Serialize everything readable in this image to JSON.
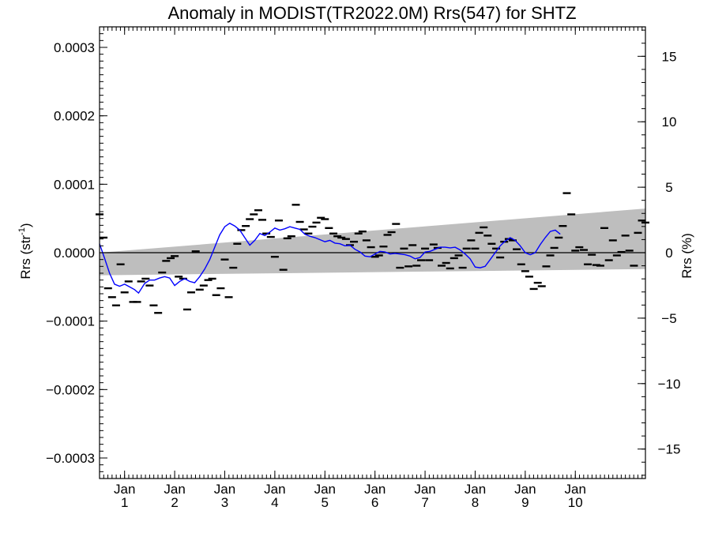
{
  "chart_data": {
    "type": "scatter",
    "title": "Anomaly in MODIST(TR2022.0M) Rrs(547) for SHTZ",
    "ylabel_left": "Rrs (str",
    "ylabel_left_sup": "-1",
    "ylabel_left_close": ")",
    "ylabel_right": "Rrs (%)",
    "grid": false,
    "xlim": [
      0,
      10.9
    ],
    "ylim": [
      -0.00033,
      0.00033
    ],
    "ylim_right": [
      -17.25,
      17.25
    ],
    "x_ticks": [
      {
        "x": 0.5,
        "month": "Jan",
        "year": "1"
      },
      {
        "x": 1.5,
        "month": "Jan",
        "year": "2"
      },
      {
        "x": 2.5,
        "month": "Jan",
        "year": "3"
      },
      {
        "x": 3.5,
        "month": "Jan",
        "year": "4"
      },
      {
        "x": 4.5,
        "month": "Jan",
        "year": "5"
      },
      {
        "x": 5.5,
        "month": "Jan",
        "year": "6"
      },
      {
        "x": 6.5,
        "month": "Jan",
        "year": "7"
      },
      {
        "x": 7.5,
        "month": "Jan",
        "year": "8"
      },
      {
        "x": 8.5,
        "month": "Jan",
        "year": "9"
      },
      {
        "x": 9.5,
        "month": "Jan",
        "year": "10"
      }
    ],
    "y_ticks_left": [
      {
        "v": 0.0003,
        "label": "0.0003"
      },
      {
        "v": 0.0002,
        "label": "0.0002"
      },
      {
        "v": 0.0001,
        "label": "0.0001"
      },
      {
        "v": 0.0,
        "label": "0.0000"
      },
      {
        "v": -0.0001,
        "label": "−0.0001"
      },
      {
        "v": -0.0002,
        "label": "−0.0002"
      },
      {
        "v": -0.0003,
        "label": "−0.0003"
      }
    ],
    "y_ticks_right": [
      {
        "v": 15,
        "label": "15"
      },
      {
        "v": 10,
        "label": "10"
      },
      {
        "v": 5,
        "label": "5"
      },
      {
        "v": 0,
        "label": "0"
      },
      {
        "v": -5,
        "label": "−5"
      },
      {
        "v": -10,
        "label": "−10"
      },
      {
        "v": -15,
        "label": "−15"
      }
    ],
    "colors": {
      "band": "#bebebe",
      "smooth_line": "#0000ff",
      "points": "#000000",
      "zero_line": "#000000"
    },
    "uncertainty_band": {
      "x": [
        0,
        10.9
      ],
      "upper": [
        0.0,
        6.45e-05
      ],
      "lower": [
        -3.3e-05,
        -2.4e-05
      ]
    },
    "series": [
      {
        "type": "points",
        "points": [
          [
            0.0,
            5.6e-05
          ],
          [
            0.08,
            2.2e-05
          ],
          [
            0.17,
            -5.2e-05
          ],
          [
            0.25,
            -6.5e-05
          ],
          [
            0.33,
            -7.7e-05
          ],
          [
            0.42,
            -1.7e-05
          ],
          [
            0.5,
            -5.8e-05
          ],
          [
            0.58,
            -4.2e-05
          ],
          [
            0.67,
            -7.2e-05
          ],
          [
            0.75,
            -7.2e-05
          ],
          [
            0.83,
            -4.2e-05
          ],
          [
            0.92,
            -3.8e-05
          ],
          [
            1.0,
            -4.8e-05
          ],
          [
            1.08,
            -7.7e-05
          ],
          [
            1.17,
            -8.8e-05
          ],
          [
            1.25,
            -2.9e-05
          ],
          [
            1.33,
            -1.2e-05
          ],
          [
            1.42,
            -8e-06
          ],
          [
            1.5,
            -5e-06
          ],
          [
            1.58,
            -3.5e-05
          ],
          [
            1.67,
            -3.8e-05
          ],
          [
            1.75,
            -8.3e-05
          ],
          [
            1.83,
            -5.8e-05
          ],
          [
            1.92,
            2e-06
          ],
          [
            2.0,
            -5.4e-05
          ],
          [
            2.08,
            -4.8e-05
          ],
          [
            2.17,
            -4e-05
          ],
          [
            2.25,
            -3.8e-05
          ],
          [
            2.33,
            -6.2e-05
          ],
          [
            2.42,
            -5.2e-05
          ],
          [
            2.5,
            -1e-05
          ],
          [
            2.58,
            -6.5e-05
          ],
          [
            2.67,
            -2.2e-05
          ],
          [
            2.75,
            1.3e-05
          ],
          [
            2.83,
            3.3e-05
          ],
          [
            2.92,
            3.9e-05
          ],
          [
            3.0,
            4.9e-05
          ],
          [
            3.08,
            5.6e-05
          ],
          [
            3.17,
            6.2e-05
          ],
          [
            3.25,
            4.8e-05
          ],
          [
            3.33,
            2.8e-05
          ],
          [
            3.42,
            2.3e-05
          ],
          [
            3.5,
            -6e-06
          ],
          [
            3.58,
            4.7e-05
          ],
          [
            3.67,
            -2.5e-05
          ],
          [
            3.75,
            2.1e-05
          ],
          [
            3.83,
            2.4e-05
          ],
          [
            3.92,
            7e-05
          ],
          [
            4.0,
            4.5e-05
          ],
          [
            4.08,
            3.4e-05
          ],
          [
            4.17,
            2.8e-05
          ],
          [
            4.25,
            3.8e-05
          ],
          [
            4.33,
            4.4e-05
          ],
          [
            4.42,
            5.1e-05
          ],
          [
            4.5,
            4.9e-05
          ],
          [
            4.58,
            3.6e-05
          ],
          [
            4.67,
            2.8e-05
          ],
          [
            4.75,
            2.4e-05
          ],
          [
            4.83,
            2.2e-05
          ],
          [
            4.92,
            2e-05
          ],
          [
            5.0,
            1.1e-05
          ],
          [
            5.08,
            1.6e-05
          ],
          [
            5.17,
            2.8e-05
          ],
          [
            5.25,
            3.1e-05
          ],
          [
            5.33,
            1.8e-05
          ],
          [
            5.42,
            8e-06
          ],
          [
            5.5,
            -6e-06
          ],
          [
            5.58,
            -4e-06
          ],
          [
            5.67,
            9e-06
          ],
          [
            5.75,
            2.6e-05
          ],
          [
            5.83,
            3e-05
          ],
          [
            5.92,
            4.2e-05
          ],
          [
            6.0,
            -2.2e-05
          ],
          [
            6.08,
            6e-06
          ],
          [
            6.17,
            -2e-05
          ],
          [
            6.25,
            1.1e-05
          ],
          [
            6.33,
            -1.9e-05
          ],
          [
            6.42,
            -1.1e-05
          ],
          [
            6.5,
            6e-06
          ],
          [
            6.58,
            -1.1e-05
          ],
          [
            6.67,
            1.2e-05
          ],
          [
            6.75,
            7e-06
          ],
          [
            6.83,
            -1.9e-05
          ],
          [
            6.92,
            -1.5e-05
          ],
          [
            7.0,
            -2.3e-05
          ],
          [
            7.08,
            -8e-06
          ],
          [
            7.17,
            -4e-06
          ],
          [
            7.25,
            -2.2e-05
          ],
          [
            7.33,
            6e-06
          ],
          [
            7.42,
            1.8e-05
          ],
          [
            7.5,
            6e-06
          ],
          [
            7.58,
            2.9e-05
          ],
          [
            7.67,
            3.7e-05
          ],
          [
            7.75,
            2.5e-05
          ],
          [
            7.83,
            1.3e-05
          ],
          [
            7.92,
            6e-06
          ],
          [
            8.0,
            -7e-06
          ],
          [
            8.08,
            1.6e-05
          ],
          [
            8.17,
            2e-05
          ],
          [
            8.25,
            1.8e-05
          ],
          [
            8.33,
            5e-06
          ],
          [
            8.42,
            -1.7e-05
          ],
          [
            8.5,
            -2.7e-05
          ],
          [
            8.58,
            -3.5e-05
          ],
          [
            8.67,
            -5.3e-05
          ],
          [
            8.75,
            -4.4e-05
          ],
          [
            8.83,
            -4.9e-05
          ],
          [
            8.92,
            -2e-05
          ],
          [
            9.0,
            -4e-06
          ],
          [
            9.08,
            7e-06
          ],
          [
            9.17,
            2.2e-05
          ],
          [
            9.25,
            3.9e-05
          ],
          [
            9.33,
            8.7e-05
          ],
          [
            9.42,
            5.6e-05
          ],
          [
            9.5,
            3e-06
          ],
          [
            9.58,
            8e-06
          ],
          [
            9.67,
            4e-06
          ],
          [
            9.75,
            -1.7e-05
          ],
          [
            9.83,
            -3e-06
          ],
          [
            9.92,
            -1.8e-05
          ],
          [
            10.0,
            -1.9e-05
          ],
          [
            10.08,
            3.6e-05
          ],
          [
            10.17,
            -1.1e-05
          ],
          [
            10.25,
            1.8e-05
          ],
          [
            10.33,
            -4e-06
          ],
          [
            10.42,
            1e-06
          ],
          [
            10.5,
            2.5e-05
          ],
          [
            10.58,
            3e-06
          ],
          [
            10.67,
            -1.9e-05
          ],
          [
            10.75,
            2.9e-05
          ],
          [
            10.83,
            4.7e-05
          ],
          [
            10.9,
            4.4e-05
          ]
        ]
      },
      {
        "type": "line",
        "points": [
          [
            0.0,
            1.3e-05
          ],
          [
            0.1,
            -8e-06
          ],
          [
            0.2,
            -3e-05
          ],
          [
            0.3,
            -4.6e-05
          ],
          [
            0.4,
            -4.9e-05
          ],
          [
            0.5,
            -4.6e-05
          ],
          [
            0.6,
            -5e-05
          ],
          [
            0.7,
            -5.4e-05
          ],
          [
            0.78,
            -5.9e-05
          ],
          [
            0.9,
            -4.5e-05
          ],
          [
            1.0,
            -4e-05
          ],
          [
            1.1,
            -4e-05
          ],
          [
            1.2,
            -3.7e-05
          ],
          [
            1.3,
            -3.5e-05
          ],
          [
            1.4,
            -3.7e-05
          ],
          [
            1.5,
            -4.8e-05
          ],
          [
            1.6,
            -4.2e-05
          ],
          [
            1.7,
            -3.8e-05
          ],
          [
            1.8,
            -4.2e-05
          ],
          [
            1.9,
            -4.4e-05
          ],
          [
            2.0,
            -3.5e-05
          ],
          [
            2.1,
            -2.4e-05
          ],
          [
            2.2,
            -1e-05
          ],
          [
            2.3,
            8e-06
          ],
          [
            2.4,
            2.6e-05
          ],
          [
            2.5,
            3.8e-05
          ],
          [
            2.6,
            4.3e-05
          ],
          [
            2.7,
            3.9e-05
          ],
          [
            2.8,
            3.3e-05
          ],
          [
            2.9,
            2.2e-05
          ],
          [
            3.0,
            1.1e-05
          ],
          [
            3.1,
            1.8e-05
          ],
          [
            3.2,
            2.8e-05
          ],
          [
            3.3,
            2.5e-05
          ],
          [
            3.4,
            3e-05
          ],
          [
            3.5,
            3.6e-05
          ],
          [
            3.6,
            3.3e-05
          ],
          [
            3.7,
            3.5e-05
          ],
          [
            3.8,
            3.8e-05
          ],
          [
            3.9,
            3.6e-05
          ],
          [
            4.0,
            3.4e-05
          ],
          [
            4.1,
            2.7e-05
          ],
          [
            4.2,
            2.4e-05
          ],
          [
            4.3,
            2.2e-05
          ],
          [
            4.4,
            1.9e-05
          ],
          [
            4.5,
            1.6e-05
          ],
          [
            4.6,
            1.8e-05
          ],
          [
            4.7,
            1.4e-05
          ],
          [
            4.8,
            1.3e-05
          ],
          [
            4.9,
            1e-05
          ],
          [
            5.0,
            1.1e-05
          ],
          [
            5.1,
            5e-06
          ],
          [
            5.2,
            1e-06
          ],
          [
            5.3,
            -5e-06
          ],
          [
            5.4,
            -6e-06
          ],
          [
            5.5,
            -2e-06
          ],
          [
            5.6,
            2e-06
          ],
          [
            5.7,
            1e-06
          ],
          [
            5.8,
            -2e-06
          ],
          [
            5.9,
            -1e-06
          ],
          [
            6.0,
            -2e-06
          ],
          [
            6.1,
            -3e-06
          ],
          [
            6.2,
            -5e-06
          ],
          [
            6.3,
            -9e-06
          ],
          [
            6.4,
            -7e-06
          ],
          [
            6.5,
            1e-06
          ],
          [
            6.6,
            2e-06
          ],
          [
            6.7,
            5e-06
          ],
          [
            6.8,
            8e-06
          ],
          [
            6.9,
            8e-06
          ],
          [
            7.0,
            7e-06
          ],
          [
            7.1,
            8e-06
          ],
          [
            7.2,
            4e-06
          ],
          [
            7.3,
            -2e-06
          ],
          [
            7.4,
            -9e-06
          ],
          [
            7.5,
            -2.1e-05
          ],
          [
            7.6,
            -2.2e-05
          ],
          [
            7.7,
            -2e-05
          ],
          [
            7.8,
            -1e-05
          ],
          [
            7.9,
            0.0
          ],
          [
            8.0,
            1e-05
          ],
          [
            8.1,
            1.7e-05
          ],
          [
            8.2,
            2.2e-05
          ],
          [
            8.3,
            1.8e-05
          ],
          [
            8.4,
            1e-05
          ],
          [
            8.5,
            0.0
          ],
          [
            8.6,
            -3e-06
          ],
          [
            8.7,
            0.0
          ],
          [
            8.8,
            1.2e-05
          ],
          [
            8.9,
            2.2e-05
          ],
          [
            9.0,
            3.1e-05
          ],
          [
            9.1,
            3.3e-05
          ],
          [
            9.2,
            2.7e-05
          ]
        ]
      }
    ]
  }
}
